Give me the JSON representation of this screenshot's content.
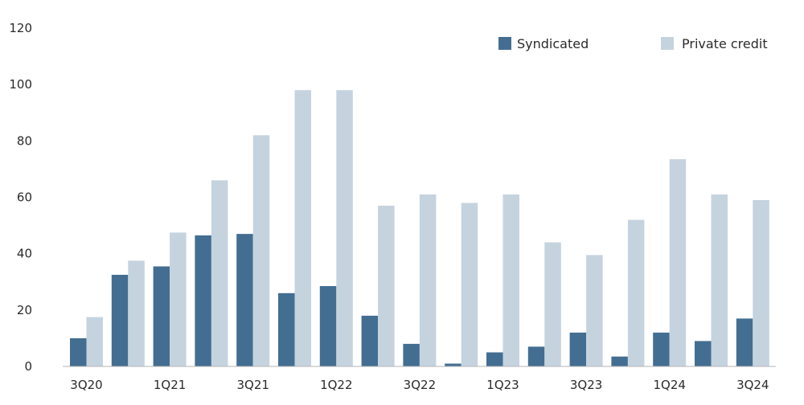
{
  "chart_data": {
    "type": "bar",
    "categories": [
      "3Q20",
      "4Q20",
      "1Q21",
      "2Q21",
      "3Q21",
      "4Q21",
      "1Q22",
      "2Q22",
      "3Q22",
      "4Q22",
      "1Q23",
      "2Q23",
      "3Q23",
      "4Q23",
      "1Q24",
      "2Q24",
      "3Q24"
    ],
    "x_tick_labels": [
      "3Q20",
      "1Q21",
      "3Q21",
      "1Q22",
      "3Q22",
      "1Q23",
      "3Q23",
      "1Q24",
      "3Q24"
    ],
    "y_ticks": [
      0,
      20,
      40,
      60,
      80,
      100,
      120
    ],
    "ylim": [
      0,
      120
    ],
    "series": [
      {
        "name": "Syndicated",
        "color": "#436e92",
        "values": [
          10,
          32.5,
          35.5,
          46.5,
          47,
          26,
          28.5,
          18,
          8,
          1,
          5,
          7,
          12,
          3.5,
          12,
          9,
          17
        ]
      },
      {
        "name": "Private credit",
        "color": "#c5d3df",
        "values": [
          17.5,
          37.5,
          47.5,
          66,
          82,
          98,
          98,
          57,
          61,
          58,
          61,
          44,
          39.5,
          52,
          73.5,
          61,
          59
        ]
      }
    ],
    "legend_position": "top-right",
    "grid": false,
    "title": "",
    "xlabel": "",
    "ylabel": ""
  }
}
